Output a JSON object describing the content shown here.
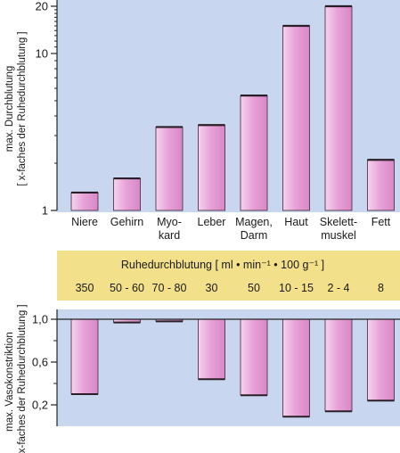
{
  "colors": {
    "panel": "#c8d7ef",
    "band": "#f3e08a",
    "bar_light": "#f7d3ee",
    "bar_mid": "#e7a4d8",
    "bar_dark": "#d986c8",
    "axis": "#222222"
  },
  "chart_data": [
    {
      "type": "bar",
      "ylabel_lines": [
        "max. Durchblutung",
        "[ x-faches der Ruhedurchblutung ]"
      ],
      "yscale": "log",
      "ylim": [
        1,
        22
      ],
      "yticks": [
        1,
        10,
        20
      ],
      "ytick_labels": [
        "1",
        "10",
        "20"
      ],
      "categories": [
        {
          "lines": [
            "Niere"
          ]
        },
        {
          "lines": [
            "Gehirn"
          ]
        },
        {
          "lines": [
            "Myo-",
            "kard"
          ]
        },
        {
          "lines": [
            "Leber"
          ]
        },
        {
          "lines": [
            "Magen,",
            "Darm"
          ]
        },
        {
          "lines": [
            "Haut"
          ]
        },
        {
          "lines": [
            "Skelett-",
            "muskel"
          ]
        },
        {
          "lines": [
            "Fett"
          ]
        }
      ],
      "values": [
        1.3,
        1.6,
        3.4,
        3.5,
        5.4,
        15,
        20,
        2.1
      ]
    },
    {
      "type": "table",
      "title": "Ruhedurchblutung [ ml • min⁻¹ • 100 g⁻¹ ]",
      "values": [
        "350",
        "50 - 60",
        "70 - 80",
        "30",
        "50",
        "10 - 15",
        "2 - 4",
        "8"
      ]
    },
    {
      "type": "bar",
      "ylabel_lines": [
        "max. Vasokonstriktion",
        "[ x-faches der Ruhedurchblutung ]"
      ],
      "ylim": [
        0,
        1
      ],
      "yticks": [
        1.0,
        0.6,
        0.2
      ],
      "ytick_labels": [
        "1,0",
        "0,6",
        "0,2"
      ],
      "values": [
        0.3,
        0.97,
        0.98,
        0.44,
        0.29,
        0.09,
        0.14,
        0.24
      ]
    }
  ]
}
